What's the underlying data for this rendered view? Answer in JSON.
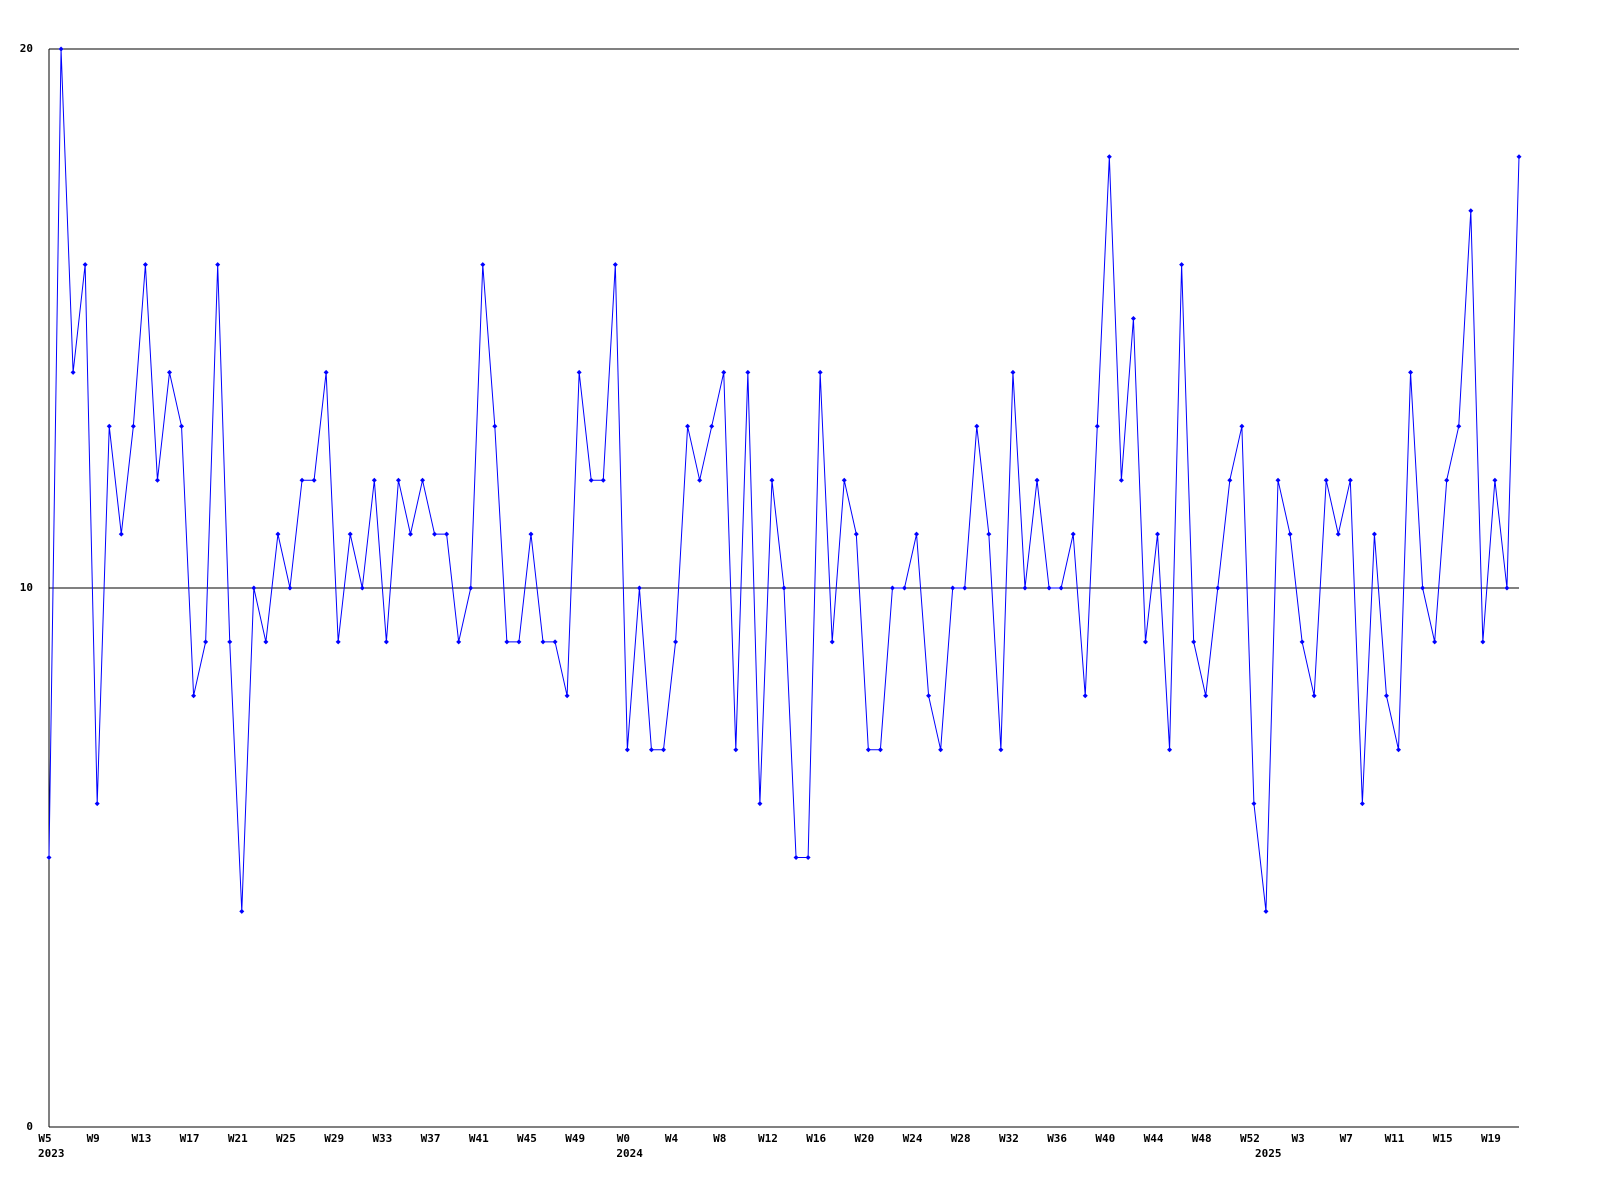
{
  "chart_data": {
    "type": "line",
    "categories": [
      "W5",
      null,
      null,
      null,
      "W9",
      null,
      null,
      null,
      "W13",
      null,
      null,
      null,
      "W17",
      null,
      null,
      null,
      "W21",
      null,
      null,
      null,
      "W25",
      null,
      null,
      null,
      "W29",
      null,
      null,
      null,
      "W33",
      null,
      null,
      null,
      "W37",
      null,
      null,
      null,
      "W41",
      null,
      null,
      null,
      "W45",
      null,
      null,
      null,
      "W49",
      null,
      null,
      null,
      "W0",
      null,
      null,
      null,
      "W4",
      null,
      null,
      null,
      "W8",
      null,
      null,
      null,
      "W12",
      null,
      null,
      null,
      "W16",
      null,
      null,
      null,
      "W20",
      null,
      null,
      null,
      "W24",
      null,
      null,
      null,
      "W28",
      null,
      null,
      null,
      "W32",
      null,
      null,
      null,
      "W36",
      null,
      null,
      null,
      "W40",
      null,
      null,
      null,
      "W44",
      null,
      null,
      null,
      "W48",
      null,
      null,
      null,
      "W52",
      null,
      null,
      null,
      "W3",
      null,
      null,
      null,
      "W7",
      null,
      null,
      null,
      "W11",
      null,
      null,
      null,
      "W15",
      null,
      null,
      null,
      "W19",
      null,
      null
    ],
    "year_labels": [
      "2023",
      null,
      null,
      null,
      null,
      null,
      null,
      null,
      null,
      null,
      null,
      null,
      null,
      null,
      null,
      null,
      null,
      null,
      null,
      null,
      null,
      null,
      null,
      null,
      null,
      null,
      null,
      null,
      null,
      null,
      null,
      null,
      null,
      null,
      null,
      null,
      null,
      null,
      null,
      null,
      null,
      null,
      null,
      null,
      null,
      null,
      null,
      null,
      "2024",
      null,
      null,
      null,
      null,
      null,
      null,
      null,
      null,
      null,
      null,
      null,
      null,
      null,
      null,
      null,
      null,
      null,
      null,
      null,
      null,
      null,
      null,
      null,
      null,
      null,
      null,
      null,
      null,
      null,
      null,
      null,
      null,
      null,
      null,
      null,
      null,
      null,
      null,
      null,
      null,
      null,
      null,
      null,
      null,
      null,
      null,
      null,
      null,
      null,
      null,
      null,
      null,
      "2025",
      null,
      null,
      null,
      null,
      null,
      null,
      null,
      null,
      null,
      null,
      null,
      null,
      null,
      null,
      null,
      null,
      null,
      null,
      null,
      null
    ],
    "series": [
      {
        "color": "#0000ff",
        "values": [
          5,
          20,
          14,
          16,
          6,
          13,
          11,
          13,
          16,
          12,
          14,
          13,
          8,
          9,
          16,
          9,
          4,
          10,
          9,
          11,
          10,
          12,
          12,
          14,
          9,
          11,
          10,
          12,
          9,
          12,
          11,
          12,
          11,
          11,
          9,
          10,
          16,
          13,
          9,
          9,
          11,
          9,
          9,
          8,
          14,
          12,
          12,
          16,
          7,
          10,
          7,
          7,
          9,
          13,
          12,
          13,
          14,
          7,
          14,
          6,
          12,
          10,
          5,
          5,
          14,
          9,
          12,
          11,
          7,
          7,
          10,
          10,
          11,
          8,
          7,
          10,
          10,
          13,
          11,
          7,
          14,
          10,
          12,
          10,
          10,
          11,
          8,
          13,
          18,
          12,
          15,
          9,
          11,
          7,
          16,
          9,
          8,
          10,
          12,
          13,
          6,
          4,
          12,
          11,
          9,
          8,
          12,
          11,
          12,
          6,
          11,
          8,
          7,
          14,
          10,
          9,
          12,
          13,
          17,
          9,
          12,
          10,
          18
        ]
      }
    ],
    "ylim": [
      0,
      20
    ],
    "yticks": [
      0,
      10,
      20
    ],
    "grid": true
  }
}
